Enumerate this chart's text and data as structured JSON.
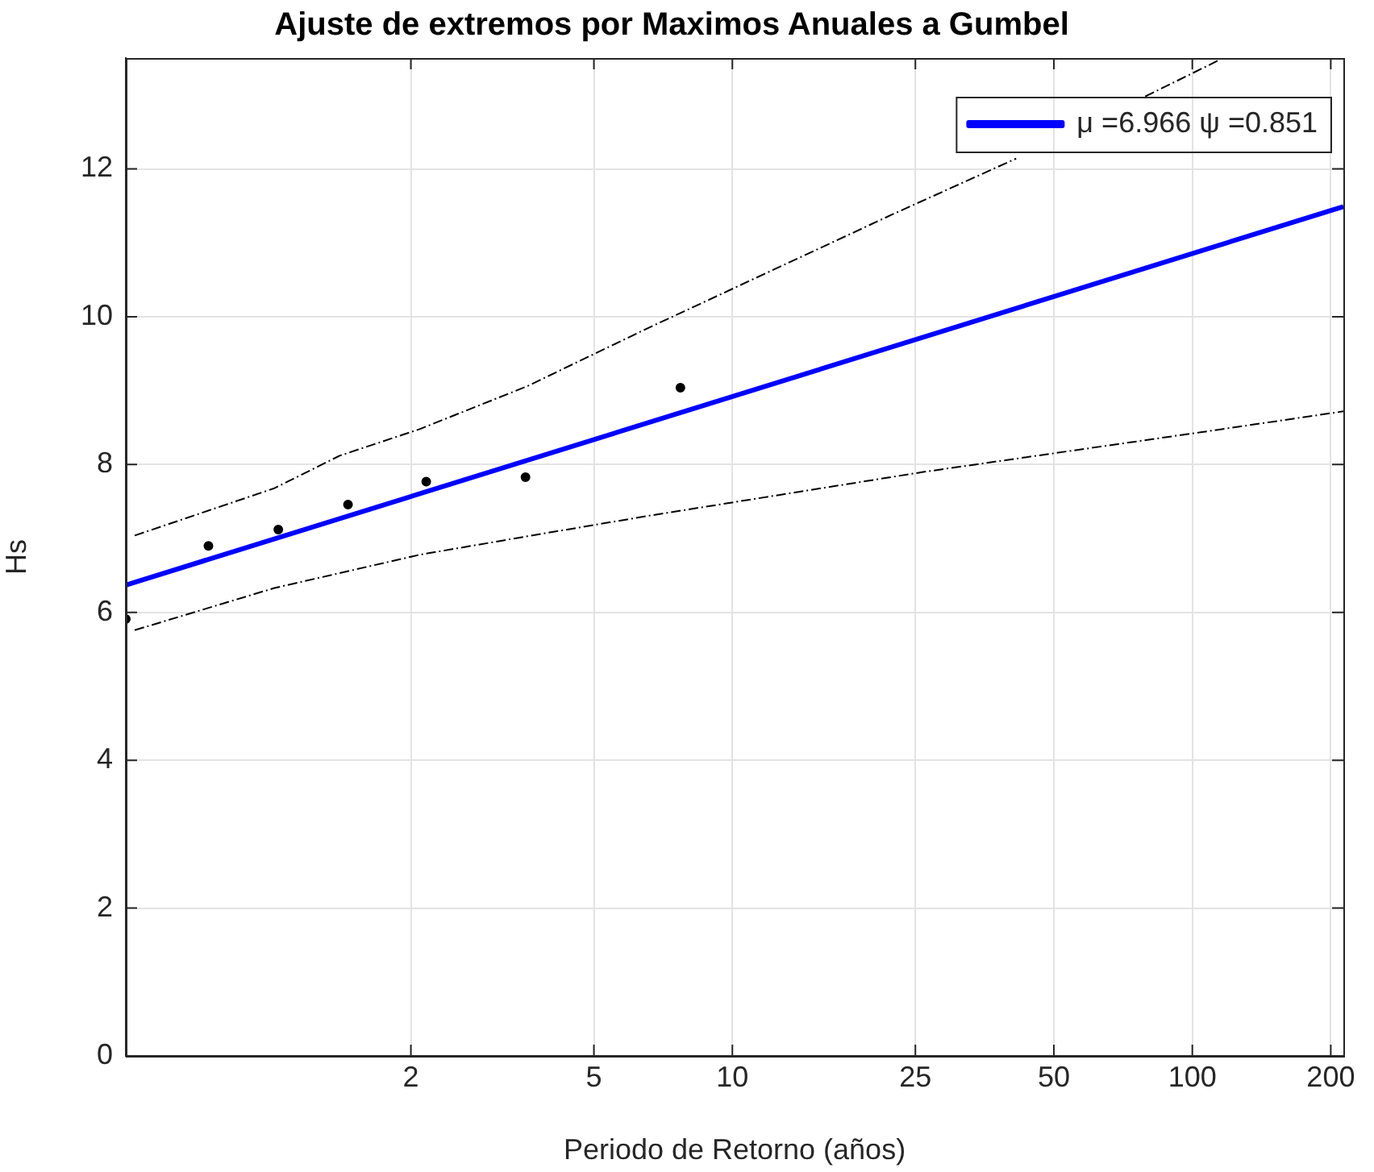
{
  "chart_data": {
    "type": "line",
    "title": "Ajuste de extremos por Maximos Anuales a Gumbel",
    "xlabel": "Periodo de Retorno (años)",
    "ylabel": "Hs",
    "log": "x",
    "xlim": [
      0.48,
      213
    ],
    "xticks": [
      2,
      5,
      10,
      25,
      50,
      100,
      200
    ],
    "ylim": [
      0,
      13.5
    ],
    "yticks": [
      0,
      2,
      4,
      6,
      8,
      10,
      12
    ],
    "grid": true,
    "legend": "top right",
    "series": [
      {
        "type": "scatter",
        "color": "#000000",
        "marker": "circle",
        "x": [
          0.48,
          0.726,
          1.03,
          1.46,
          2.16,
          3.55,
          7.71
        ],
        "values": [
          5.91,
          6.9,
          7.12,
          7.46,
          7.77,
          7.83,
          9.04
        ]
      },
      {
        "type": "line",
        "name": "μ =6.966 ψ =0.851",
        "color": "#0000ff",
        "marker": "none",
        "line_style": "solid",
        "x": [
          0.48,
          213
        ],
        "values": [
          6.37,
          11.49
        ]
      },
      {
        "type": "line",
        "color": "#000000",
        "marker": "none",
        "line_style": "dashed",
        "x": [
          0.502,
          1.01,
          1.4,
          2.09,
          3.58,
          6.47,
          22.2,
          41.4,
          60,
          79,
          115
        ],
        "values": [
          7.04,
          7.68,
          8.12,
          8.48,
          9.06,
          9.83,
          11.38,
          12.14,
          null,
          12.98,
          13.48
        ]
      },
      {
        "type": "line",
        "color": "#000000",
        "marker": "none",
        "line_style": "dashed",
        "x": [
          0.502,
          1.01,
          2.09,
          3.58,
          6.47,
          26,
          105,
          213
        ],
        "values": [
          5.76,
          6.33,
          6.78,
          7.03,
          7.3,
          7.9,
          8.44,
          8.72
        ]
      }
    ]
  }
}
